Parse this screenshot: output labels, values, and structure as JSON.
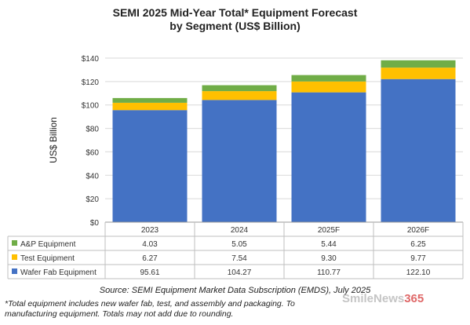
{
  "chart_data": {
    "type": "bar",
    "stacked": true,
    "title_line1": "SEMI 2025 Mid-Year Total* Equipment Forecast",
    "title_line2": "by Segment (US$ Billion)",
    "ylabel": "US$ Billion",
    "xlabel": "",
    "ylim": [
      0,
      140
    ],
    "yticks": [
      "$0",
      "$20",
      "$40",
      "$60",
      "$80",
      "$100",
      "$120",
      "$140"
    ],
    "ytick_values": [
      0,
      20,
      40,
      60,
      80,
      100,
      120,
      140
    ],
    "grid": true,
    "legend": "data-table",
    "categories": [
      "2023",
      "2024",
      "2025F",
      "2026F"
    ],
    "series": [
      {
        "name": "Wafer Fab Equipment",
        "color": "#4472c4",
        "values": [
          95.61,
          104.27,
          110.77,
          122.1
        ],
        "labels": [
          "95.61",
          "104.27",
          "110.77",
          "122.10"
        ]
      },
      {
        "name": "Test Equipment",
        "color": "#ffc000",
        "values": [
          6.27,
          7.54,
          9.3,
          9.77
        ],
        "labels": [
          "6.27",
          "7.54",
          "9.30",
          "9.77"
        ]
      },
      {
        "name": "A&P Equipment",
        "color": "#70ad47",
        "values": [
          4.03,
          5.05,
          5.44,
          6.25
        ],
        "labels": [
          "4.03",
          "5.05",
          "5.44",
          "6.25"
        ]
      }
    ],
    "table_row_order": [
      "A&P Equipment",
      "Test Equipment",
      "Wafer Fab Equipment"
    ]
  },
  "source": "Source: SEMI Equipment Market Data Subscription (EMDS), July 2025",
  "footnote_line1": "*Total equipment includes new wafer fab, test, and assembly and packaging. To",
  "footnote_line2": "manufacturing equipment. Totals may not add due to rounding.",
  "watermark": {
    "text": "SmileNews",
    "num": "365"
  }
}
